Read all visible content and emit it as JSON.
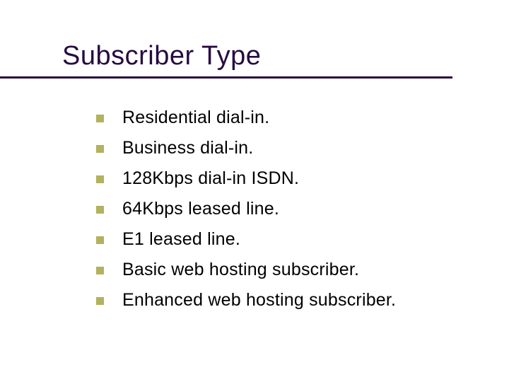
{
  "slide": {
    "title": "Subscriber Type",
    "title_color": "#260b40",
    "title_fontsize": 38,
    "underline_color": "#260b40",
    "underline_width": 640,
    "underline_height": 3,
    "background_color": "#ffffff",
    "bullet_marker_color": "#b2b25f",
    "bullet_marker_size": 11,
    "bullet_text_color": "#000000",
    "bullet_text_fontsize": 25,
    "bullets": [
      "Residential dial-in.",
      "Business dial-in.",
      "128Kbps dial-in ISDN.",
      "64Kbps leased line.",
      "E1 leased line.",
      "Basic web hosting subscriber.",
      "Enhanced web hosting subscriber."
    ]
  }
}
